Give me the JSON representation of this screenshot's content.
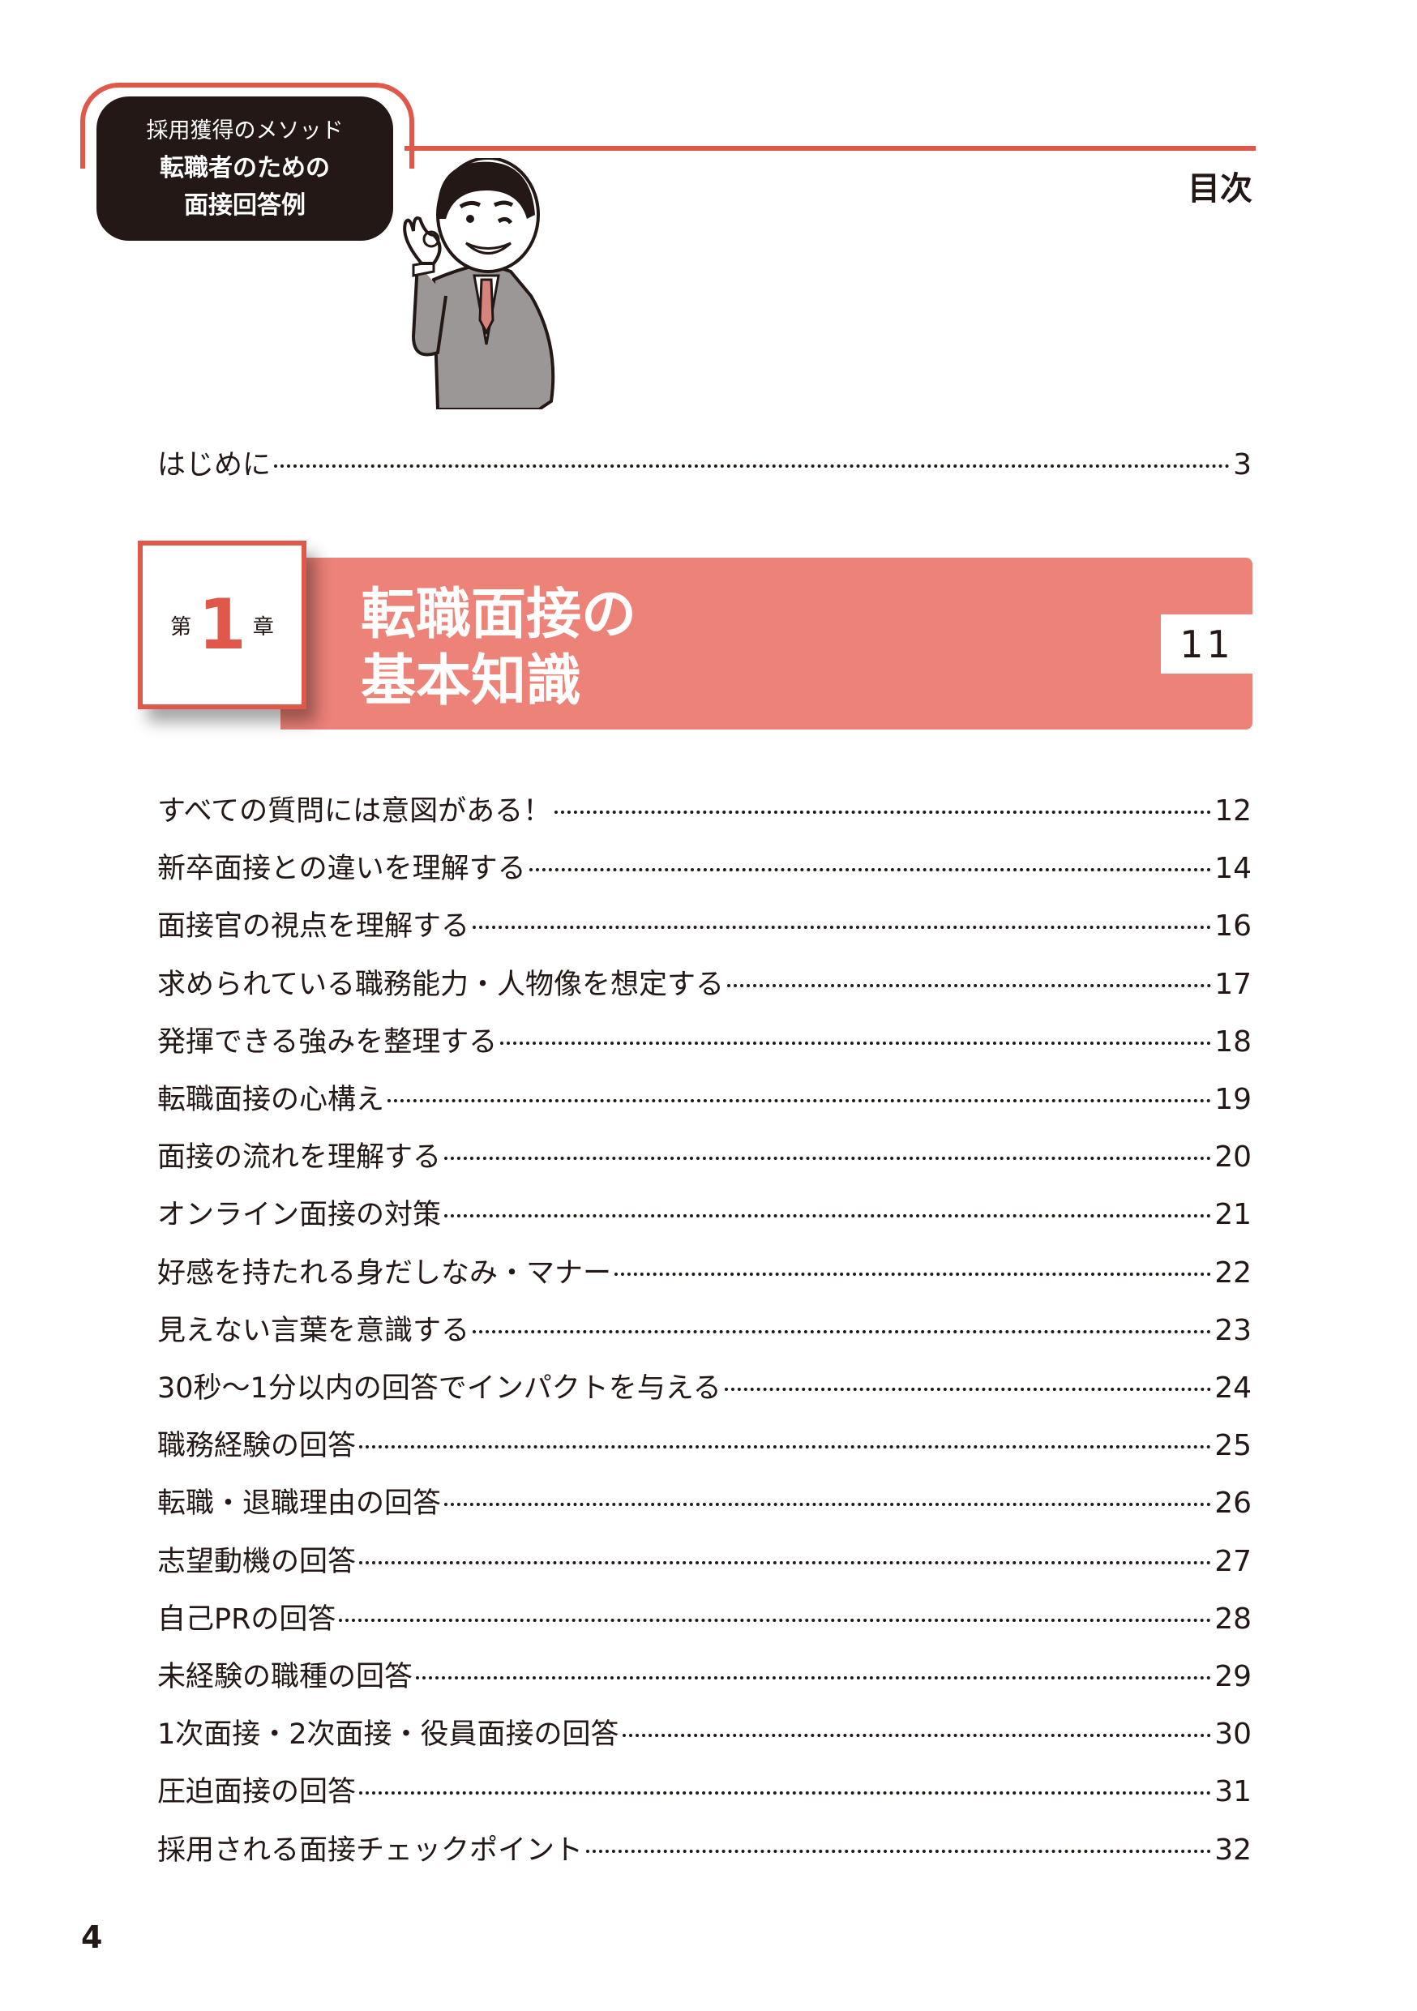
{
  "header": {
    "series": "採用獲得のメソッド",
    "title_line1": "転職者のための",
    "title_line2": "面接回答例",
    "toc_title": "目次"
  },
  "intro": {
    "label": "はじめに",
    "page": "3"
  },
  "chapter": {
    "prefix": "第",
    "number": "1",
    "suffix": "章",
    "title_line1": "転職面接の",
    "title_line2": "基本知識",
    "page": "11"
  },
  "entries": [
    {
      "label": "すべての質問には意図がある！",
      "page": "12"
    },
    {
      "label": "新卒面接との違いを理解する",
      "page": "14"
    },
    {
      "label": "面接官の視点を理解する",
      "page": "16"
    },
    {
      "label": "求められている職務能力・人物像を想定する",
      "page": "17"
    },
    {
      "label": "発揮できる強みを整理する",
      "page": "18"
    },
    {
      "label": "転職面接の心構え",
      "page": "19"
    },
    {
      "label": "面接の流れを理解する",
      "page": "20"
    },
    {
      "label": "オンライン面接の対策",
      "page": "21"
    },
    {
      "label": "好感を持たれる身だしなみ・マナー",
      "page": "22"
    },
    {
      "label": "見えない言葉を意識する",
      "page": "23"
    },
    {
      "label": "30秒〜1分以内の回答でインパクトを与える",
      "page": "24"
    },
    {
      "label": "職務経験の回答",
      "page": "25"
    },
    {
      "label": "転職・退職理由の回答",
      "page": "26"
    },
    {
      "label": "志望動機の回答",
      "page": "27"
    },
    {
      "label": "自己PRの回答",
      "page": "28"
    },
    {
      "label": "未経験の職種の回答",
      "page": "29"
    },
    {
      "label": "1次面接・2次面接・役員面接の回答",
      "page": "30"
    },
    {
      "label": "圧迫面接の回答",
      "page": "31"
    },
    {
      "label": "採用される面接チェックポイント",
      "page": "32"
    }
  ],
  "folio": "4",
  "colors": {
    "accent": "#e0584a",
    "band": "#ec8278",
    "ink": "#231815"
  }
}
